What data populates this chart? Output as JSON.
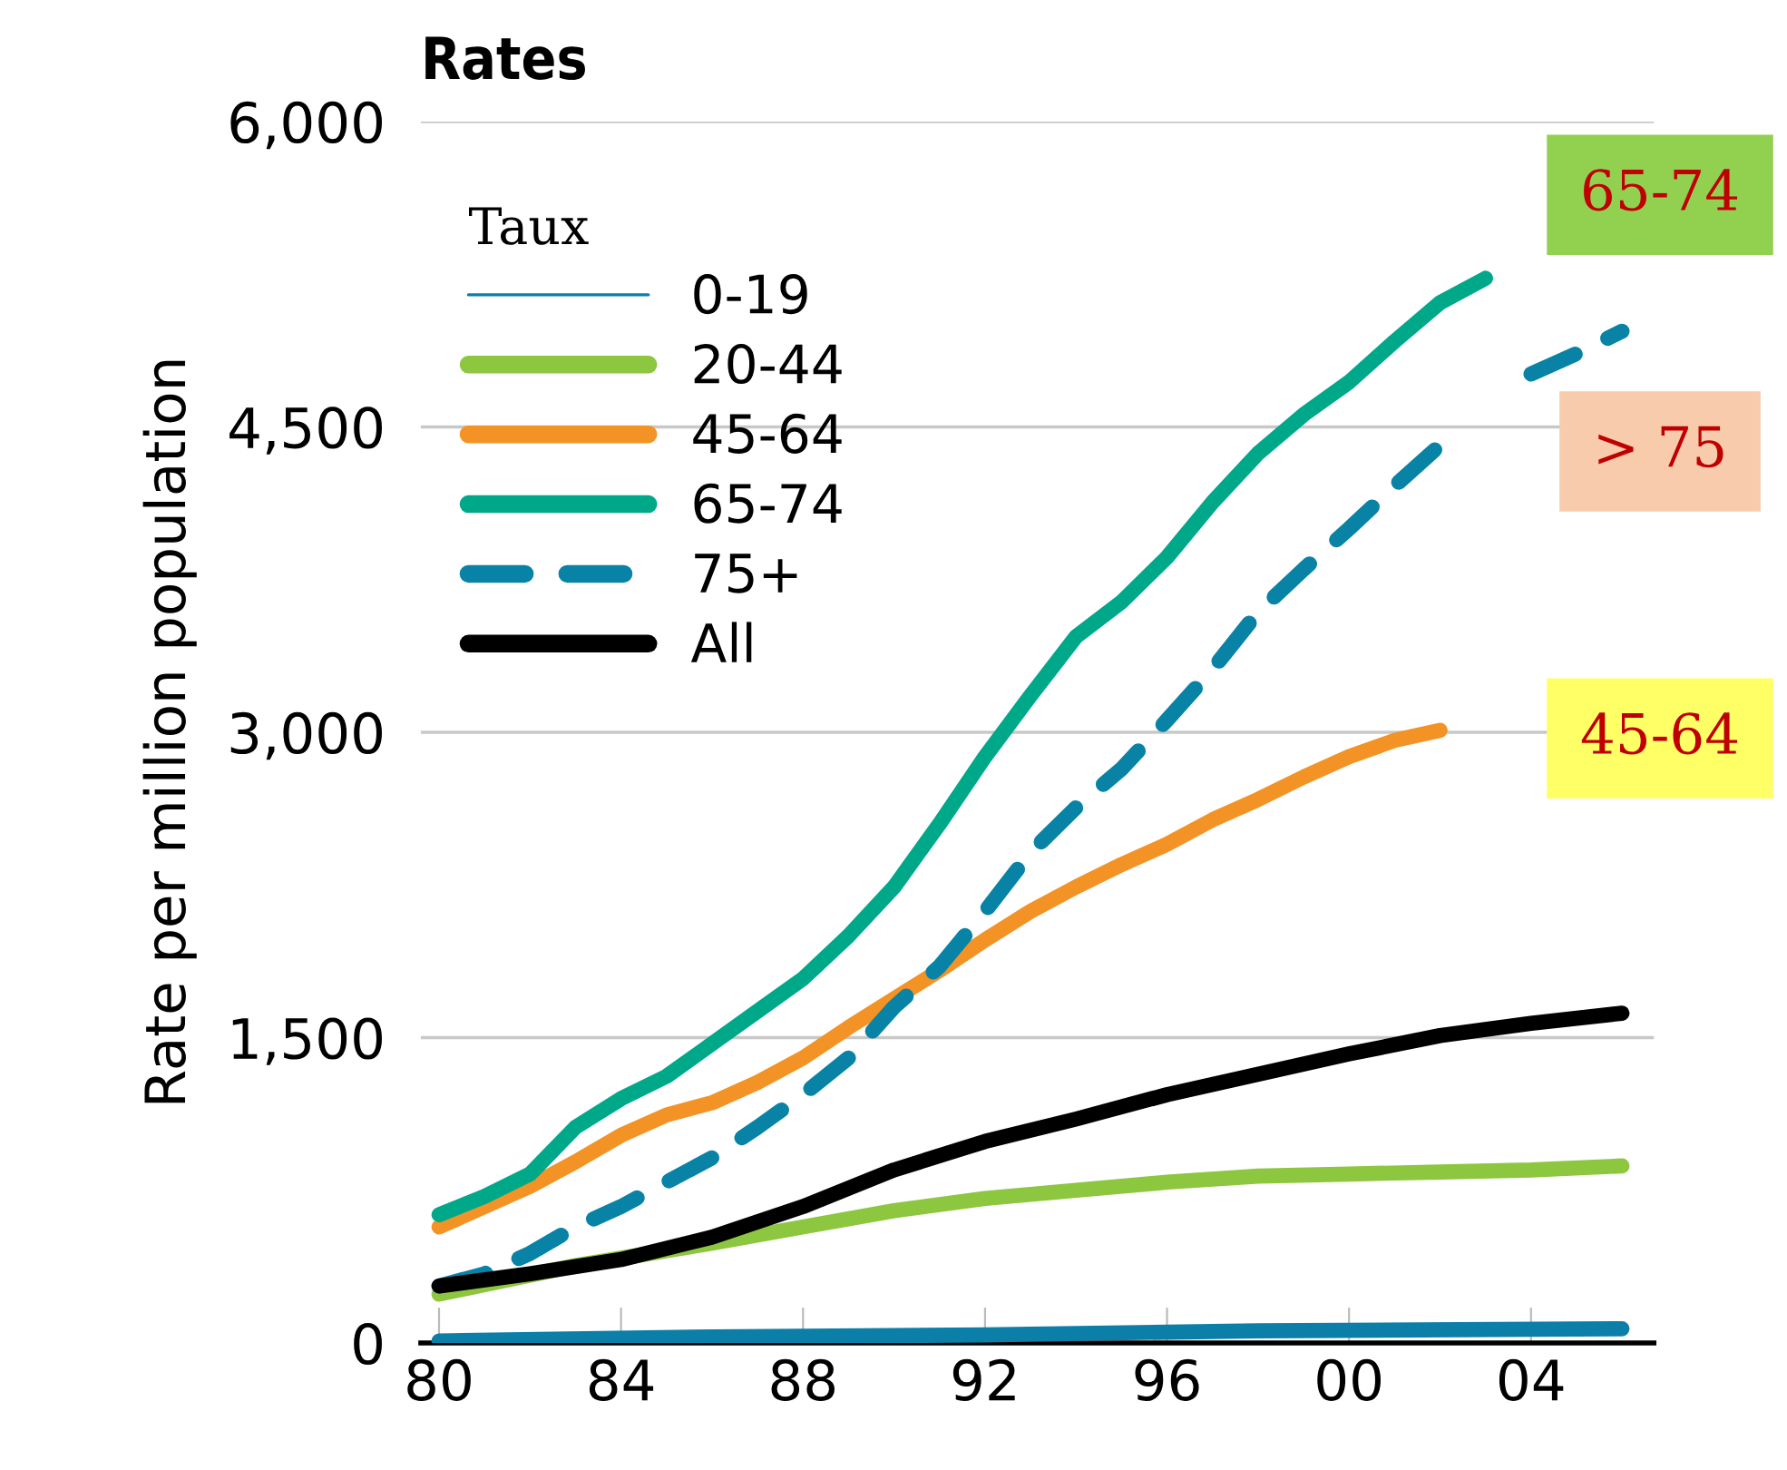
{
  "chart_data": {
    "type": "line",
    "title": "Rates",
    "ylabel": "Rate per million population",
    "legend_title": "Taux",
    "legend": "top left",
    "grid": "y",
    "xlim": [
      1979.6,
      2006.7
    ],
    "ylim": [
      0,
      6000
    ],
    "xticks": [
      {
        "value": 1980,
        "label": "80"
      },
      {
        "value": 1984,
        "label": "84"
      },
      {
        "value": 1988,
        "label": "88"
      },
      {
        "value": 1992,
        "label": "92"
      },
      {
        "value": 1996,
        "label": "96"
      },
      {
        "value": 2000,
        "label": "00"
      },
      {
        "value": 2004,
        "label": "04"
      }
    ],
    "yticks": [
      0,
      {
        "value": 1500,
        "label": "1,500"
      },
      {
        "value": 3000,
        "label": "3,000"
      },
      {
        "value": 4500,
        "label": "4,500"
      },
      {
        "value": 6000,
        "label": "6,000"
      }
    ],
    "series": [
      {
        "name": "0-19",
        "color": "#0b7fa8",
        "line_style": "solid",
        "x": [
          1980,
          1986,
          1992,
          1998,
          2006
        ],
        "values": [
          10,
          30,
          40,
          60,
          70
        ]
      },
      {
        "name": "20-44",
        "color": "#8dc63f",
        "line_style": "solid",
        "x": [
          1980,
          1983,
          1986,
          1988,
          1990,
          1992,
          1994,
          1996,
          1998,
          2000,
          2002,
          2004,
          2006
        ],
        "values": [
          240,
          380,
          490,
          570,
          650,
          710,
          750,
          790,
          820,
          830,
          840,
          850,
          870
        ]
      },
      {
        "name": "45-64",
        "color": "#f39325",
        "line_style": "solid",
        "x": [
          1980,
          1982,
          1983,
          1984,
          1985,
          1986,
          1987,
          1988,
          1989,
          1990,
          1991,
          1992,
          1993,
          1994,
          1995,
          1996,
          1997,
          1998,
          1999,
          2000,
          2001,
          2002
        ],
        "values": [
          570,
          770,
          890,
          1020,
          1120,
          1180,
          1280,
          1400,
          1550,
          1690,
          1830,
          1980,
          2120,
          2240,
          2350,
          2450,
          2570,
          2670,
          2780,
          2880,
          2960,
          3010
        ]
      },
      {
        "name": "65-74",
        "color": "#00a88a",
        "line_style": "solid",
        "x": [
          1980,
          1981,
          1982,
          1983,
          1984,
          1985,
          1986,
          1987,
          1988,
          1989,
          1990,
          1991,
          1992,
          1993,
          1994,
          1995,
          1996,
          1997,
          1998,
          1999,
          2000,
          2001,
          2002,
          2003
        ],
        "values": [
          630,
          720,
          830,
          1060,
          1200,
          1310,
          1470,
          1630,
          1790,
          2000,
          2240,
          2550,
          2880,
          3180,
          3470,
          3640,
          3860,
          4130,
          4370,
          4560,
          4720,
          4920,
          5110,
          5230
        ]
      },
      {
        "name": "75+",
        "color": "#0883a6",
        "line_style": "dashed",
        "x": [
          1980,
          1981,
          1982,
          1983,
          1984,
          1985,
          1986,
          1987,
          1988,
          1989,
          1990,
          1991,
          1992,
          1993,
          1994,
          1995,
          1996,
          1997,
          1998,
          1999,
          2000,
          2001,
          2002,
          2003,
          2004,
          2005,
          2006
        ],
        "values": [
          280,
          340,
          440,
          570,
          670,
          790,
          910,
          1060,
          1220,
          1400,
          1650,
          1850,
          2120,
          2410,
          2630,
          2820,
          3060,
          3310,
          3590,
          3800,
          4000,
          4210,
          4410,
          null,
          4760,
          4860,
          4970
        ]
      },
      {
        "name": "All",
        "color": "#000000",
        "line_style": "solid",
        "x": [
          1980,
          1982,
          1984,
          1986,
          1988,
          1990,
          1992,
          1994,
          1996,
          1998,
          2000,
          2002,
          2004,
          2006
        ],
        "values": [
          280,
          340,
          410,
          520,
          670,
          850,
          990,
          1100,
          1220,
          1320,
          1420,
          1510,
          1570,
          1620
        ]
      }
    ],
    "annotations": [
      "65-74",
      "> 75",
      "45-64"
    ]
  }
}
